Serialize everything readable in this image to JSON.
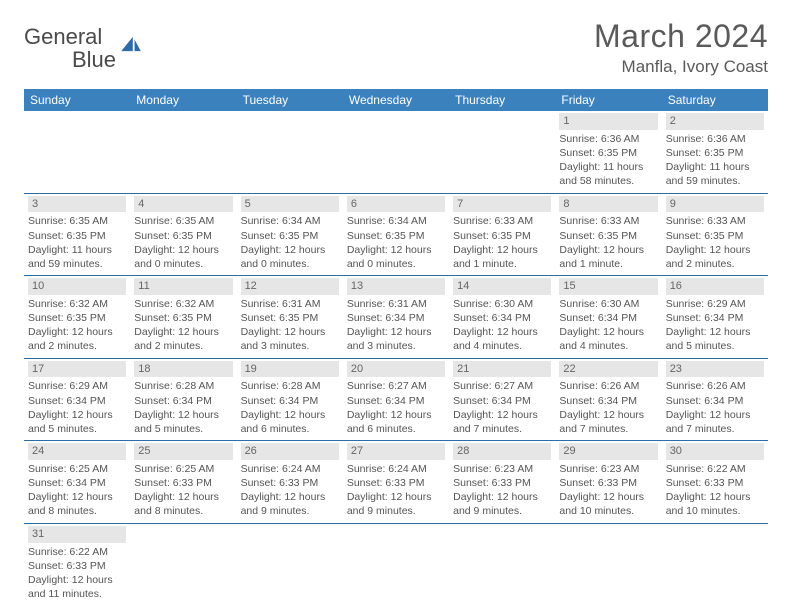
{
  "logo": {
    "text1": "General",
    "text2": "Blue"
  },
  "title": "March 2024",
  "location": "Manfla, Ivory Coast",
  "colors": {
    "header_bg": "#3b81bd",
    "header_text": "#ffffff",
    "rule": "#2e6ca8",
    "date_bg": "#e6e6e6",
    "body_text": "#555555",
    "title_text": "#5a5a5a"
  },
  "weekdays": [
    "Sunday",
    "Monday",
    "Tuesday",
    "Wednesday",
    "Thursday",
    "Friday",
    "Saturday"
  ],
  "grid": {
    "cols": 7,
    "rows": 6,
    "first_day_col": 5,
    "days_in_month": 31
  },
  "days": {
    "1": {
      "sunrise": "Sunrise: 6:36 AM",
      "sunset": "Sunset: 6:35 PM",
      "daylight": "Daylight: 11 hours and 58 minutes."
    },
    "2": {
      "sunrise": "Sunrise: 6:36 AM",
      "sunset": "Sunset: 6:35 PM",
      "daylight": "Daylight: 11 hours and 59 minutes."
    },
    "3": {
      "sunrise": "Sunrise: 6:35 AM",
      "sunset": "Sunset: 6:35 PM",
      "daylight": "Daylight: 11 hours and 59 minutes."
    },
    "4": {
      "sunrise": "Sunrise: 6:35 AM",
      "sunset": "Sunset: 6:35 PM",
      "daylight": "Daylight: 12 hours and 0 minutes."
    },
    "5": {
      "sunrise": "Sunrise: 6:34 AM",
      "sunset": "Sunset: 6:35 PM",
      "daylight": "Daylight: 12 hours and 0 minutes."
    },
    "6": {
      "sunrise": "Sunrise: 6:34 AM",
      "sunset": "Sunset: 6:35 PM",
      "daylight": "Daylight: 12 hours and 0 minutes."
    },
    "7": {
      "sunrise": "Sunrise: 6:33 AM",
      "sunset": "Sunset: 6:35 PM",
      "daylight": "Daylight: 12 hours and 1 minute."
    },
    "8": {
      "sunrise": "Sunrise: 6:33 AM",
      "sunset": "Sunset: 6:35 PM",
      "daylight": "Daylight: 12 hours and 1 minute."
    },
    "9": {
      "sunrise": "Sunrise: 6:33 AM",
      "sunset": "Sunset: 6:35 PM",
      "daylight": "Daylight: 12 hours and 2 minutes."
    },
    "10": {
      "sunrise": "Sunrise: 6:32 AM",
      "sunset": "Sunset: 6:35 PM",
      "daylight": "Daylight: 12 hours and 2 minutes."
    },
    "11": {
      "sunrise": "Sunrise: 6:32 AM",
      "sunset": "Sunset: 6:35 PM",
      "daylight": "Daylight: 12 hours and 2 minutes."
    },
    "12": {
      "sunrise": "Sunrise: 6:31 AM",
      "sunset": "Sunset: 6:35 PM",
      "daylight": "Daylight: 12 hours and 3 minutes."
    },
    "13": {
      "sunrise": "Sunrise: 6:31 AM",
      "sunset": "Sunset: 6:34 PM",
      "daylight": "Daylight: 12 hours and 3 minutes."
    },
    "14": {
      "sunrise": "Sunrise: 6:30 AM",
      "sunset": "Sunset: 6:34 PM",
      "daylight": "Daylight: 12 hours and 4 minutes."
    },
    "15": {
      "sunrise": "Sunrise: 6:30 AM",
      "sunset": "Sunset: 6:34 PM",
      "daylight": "Daylight: 12 hours and 4 minutes."
    },
    "16": {
      "sunrise": "Sunrise: 6:29 AM",
      "sunset": "Sunset: 6:34 PM",
      "daylight": "Daylight: 12 hours and 5 minutes."
    },
    "17": {
      "sunrise": "Sunrise: 6:29 AM",
      "sunset": "Sunset: 6:34 PM",
      "daylight": "Daylight: 12 hours and 5 minutes."
    },
    "18": {
      "sunrise": "Sunrise: 6:28 AM",
      "sunset": "Sunset: 6:34 PM",
      "daylight": "Daylight: 12 hours and 5 minutes."
    },
    "19": {
      "sunrise": "Sunrise: 6:28 AM",
      "sunset": "Sunset: 6:34 PM",
      "daylight": "Daylight: 12 hours and 6 minutes."
    },
    "20": {
      "sunrise": "Sunrise: 6:27 AM",
      "sunset": "Sunset: 6:34 PM",
      "daylight": "Daylight: 12 hours and 6 minutes."
    },
    "21": {
      "sunrise": "Sunrise: 6:27 AM",
      "sunset": "Sunset: 6:34 PM",
      "daylight": "Daylight: 12 hours and 7 minutes."
    },
    "22": {
      "sunrise": "Sunrise: 6:26 AM",
      "sunset": "Sunset: 6:34 PM",
      "daylight": "Daylight: 12 hours and 7 minutes."
    },
    "23": {
      "sunrise": "Sunrise: 6:26 AM",
      "sunset": "Sunset: 6:34 PM",
      "daylight": "Daylight: 12 hours and 7 minutes."
    },
    "24": {
      "sunrise": "Sunrise: 6:25 AM",
      "sunset": "Sunset: 6:34 PM",
      "daylight": "Daylight: 12 hours and 8 minutes."
    },
    "25": {
      "sunrise": "Sunrise: 6:25 AM",
      "sunset": "Sunset: 6:33 PM",
      "daylight": "Daylight: 12 hours and 8 minutes."
    },
    "26": {
      "sunrise": "Sunrise: 6:24 AM",
      "sunset": "Sunset: 6:33 PM",
      "daylight": "Daylight: 12 hours and 9 minutes."
    },
    "27": {
      "sunrise": "Sunrise: 6:24 AM",
      "sunset": "Sunset: 6:33 PM",
      "daylight": "Daylight: 12 hours and 9 minutes."
    },
    "28": {
      "sunrise": "Sunrise: 6:23 AM",
      "sunset": "Sunset: 6:33 PM",
      "daylight": "Daylight: 12 hours and 9 minutes."
    },
    "29": {
      "sunrise": "Sunrise: 6:23 AM",
      "sunset": "Sunset: 6:33 PM",
      "daylight": "Daylight: 12 hours and 10 minutes."
    },
    "30": {
      "sunrise": "Sunrise: 6:22 AM",
      "sunset": "Sunset: 6:33 PM",
      "daylight": "Daylight: 12 hours and 10 minutes."
    },
    "31": {
      "sunrise": "Sunrise: 6:22 AM",
      "sunset": "Sunset: 6:33 PM",
      "daylight": "Daylight: 12 hours and 11 minutes."
    }
  }
}
